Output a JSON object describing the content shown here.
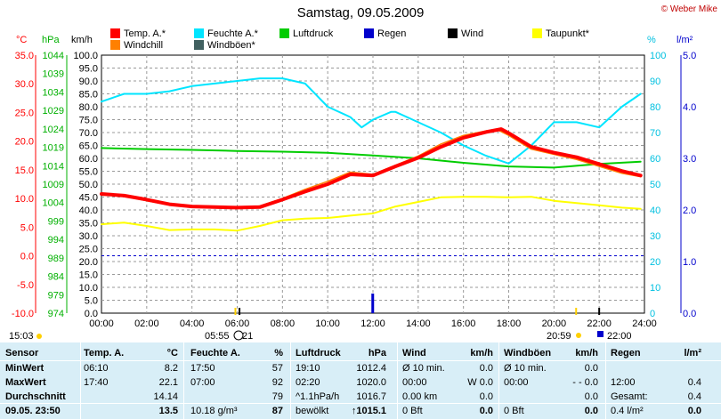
{
  "header": {
    "title": "Samstag, 09.05.2009",
    "brand": "© Weber Mike",
    "axis_headers": {
      "temp": "°C",
      "pressure": "hPa",
      "wind": "km/h",
      "humidity": "%",
      "rain": "l/m²"
    }
  },
  "legend": [
    {
      "label": "Temp. A.*",
      "color": "#ff0000"
    },
    {
      "label": "Feuchte A.*",
      "color": "#00e5ff"
    },
    {
      "label": "Luftdruck",
      "color": "#00cc00"
    },
    {
      "label": "Regen",
      "color": "#0000cc"
    },
    {
      "label": "Wind",
      "color": "#000000"
    },
    {
      "label": "Taupunkt*",
      "color": "#ffff00"
    },
    {
      "label": "Windchill",
      "color": "#ff8000"
    },
    {
      "label": "Windböen*",
      "color": "#406060"
    }
  ],
  "chart_data": {
    "type": "line",
    "title": "Samstag, 09.05.2009",
    "x_ticks": [
      "00:00",
      "02:00",
      "04:00",
      "06:00",
      "08:00",
      "10:00",
      "12:00",
      "14:00",
      "16:00",
      "18:00",
      "20:00",
      "22:00",
      "24:00"
    ],
    "axes": {
      "temp": {
        "label": "°C",
        "ylim": [
          -10,
          35
        ],
        "ticks": [
          "35.0",
          "30.0",
          "25.0",
          "20.0",
          "15.0",
          "10.0",
          "5.0",
          "0.0",
          "-5.0",
          "-10.0"
        ]
      },
      "pressure": {
        "label": "hPa",
        "ylim": [
          974,
          1044
        ],
        "ticks": [
          "1044",
          "1039",
          "1034",
          "1029",
          "1024",
          "1019",
          "1014",
          "1009",
          "1004",
          "999",
          "994",
          "989",
          "984",
          "979",
          "974"
        ]
      },
      "wind": {
        "label": "km/h",
        "ylim": [
          0,
          100
        ],
        "ticks": [
          "100.0",
          "95.0",
          "90.0",
          "85.0",
          "80.0",
          "75.0",
          "70.0",
          "65.0",
          "60.0",
          "55.0",
          "50.0",
          "45.0",
          "40.0",
          "35.0",
          "30.0",
          "25.0",
          "20.0",
          "15.0",
          "10.0",
          "5.0",
          "0.0"
        ]
      },
      "humidity": {
        "label": "%",
        "ylim": [
          0,
          100
        ],
        "ticks": [
          "100",
          "90",
          "80",
          "70",
          "60",
          "50",
          "40",
          "30",
          "20",
          "10",
          "0"
        ]
      },
      "rain": {
        "label": "l/m²",
        "ylim": [
          0,
          5
        ],
        "ticks": [
          "5.0",
          "4.0",
          "3.0",
          "2.0",
          "1.0",
          "0.0"
        ]
      }
    },
    "series": [
      {
        "name": "Temp. A.*",
        "axis": "temp",
        "color": "#ff0000",
        "x": [
          0,
          1,
          2,
          3,
          4,
          5,
          6,
          7,
          8,
          9,
          10,
          11,
          12,
          13,
          14,
          15,
          16,
          17,
          17.67,
          18,
          19,
          20,
          21,
          22,
          23,
          23.83
        ],
        "y": [
          10.8,
          10.5,
          9.8,
          9.0,
          8.6,
          8.5,
          8.4,
          8.5,
          9.8,
          11.2,
          12.5,
          14.2,
          14.0,
          15.6,
          17.1,
          19.0,
          20.6,
          21.6,
          22.1,
          21.4,
          19.0,
          18.0,
          17.2,
          16.0,
          14.8,
          14.0
        ]
      },
      {
        "name": "Windchill",
        "axis": "temp",
        "color": "#ff8000",
        "x": [
          0,
          1,
          2,
          3,
          4,
          5,
          6,
          7,
          8,
          9,
          10,
          11,
          12,
          13,
          14,
          15,
          16,
          17,
          17.5,
          18,
          19,
          20,
          21,
          22,
          23,
          23.83
        ],
        "y": [
          10.6,
          10.4,
          9.6,
          8.9,
          8.5,
          8.4,
          8.3,
          8.7,
          10.0,
          11.6,
          13.0,
          14.6,
          14.2,
          15.8,
          17.4,
          19.5,
          21.0,
          21.8,
          22.0,
          21.0,
          18.6,
          17.7,
          16.8,
          15.6,
          14.4,
          13.8
        ]
      },
      {
        "name": "Feuchte A.*",
        "axis": "humidity",
        "color": "#00e5ff",
        "x": [
          0,
          1,
          2,
          3,
          4,
          5,
          6,
          7,
          8,
          9,
          10,
          11,
          11.5,
          12,
          12.8,
          13,
          14,
          15,
          16,
          17,
          18,
          19,
          20,
          21,
          22,
          23,
          23.83
        ],
        "y": [
          82,
          85,
          85,
          86,
          88,
          89,
          90,
          91,
          91,
          89,
          80,
          76,
          72,
          75,
          78,
          78,
          74,
          70,
          65,
          61,
          58,
          65,
          74,
          74,
          72,
          80,
          85
        ]
      },
      {
        "name": "Luftdruck",
        "axis": "pressure",
        "color": "#00cc00",
        "x": [
          0,
          2,
          4,
          6,
          8,
          10,
          12,
          14,
          16,
          18,
          20,
          22,
          23.83
        ],
        "y": [
          1018.8,
          1018.5,
          1018.3,
          1018.0,
          1017.8,
          1017.5,
          1016.8,
          1016.0,
          1014.8,
          1013.8,
          1013.5,
          1014.5,
          1015.1
        ]
      },
      {
        "name": "Taupunkt*",
        "axis": "temp",
        "color": "#ffff00",
        "x": [
          0,
          1,
          2,
          3,
          4,
          5,
          6,
          7,
          8,
          9,
          10,
          11,
          12,
          13,
          14,
          15,
          16,
          17,
          18,
          19,
          20,
          21,
          22,
          23,
          23.83
        ],
        "y": [
          5.5,
          5.8,
          5.2,
          4.5,
          4.6,
          4.6,
          4.4,
          5.2,
          6.2,
          6.5,
          6.6,
          7.0,
          7.4,
          8.6,
          9.4,
          10.2,
          10.3,
          10.3,
          10.2,
          10.3,
          9.6,
          9.2,
          8.8,
          8.4,
          8.2
        ]
      },
      {
        "name": "Regen",
        "axis": "rain",
        "color": "#0000cc",
        "x": [
          11.99
        ],
        "y": [
          0.38
        ],
        "style": "bar"
      }
    ],
    "markers_row": [
      {
        "time": "05:55",
        "label": "05:55"
      },
      {
        "time": "06:21",
        "label": "21"
      },
      {
        "time": "20:59",
        "label": "20:59"
      },
      {
        "time": "22:00",
        "label": "22:00"
      }
    ],
    "xlabel": "",
    "grid": true
  },
  "bottom_left_time": "15:03",
  "table": {
    "rows": [
      [
        "Sensor",
        "Temp. A.",
        "°C",
        "Feuchte A.",
        "%",
        "Luftdruck",
        "hPa",
        "Wind",
        "km/h",
        "Windböen",
        "km/h",
        "Regen",
        "l/m²"
      ],
      [
        "MinWert",
        "06:10",
        "8.2",
        "17:50",
        "57",
        "19:10",
        "1012.4",
        "Ø 10 min.",
        "0.0",
        "Ø 10 min.",
        "0.0",
        "",
        ""
      ],
      [
        "MaxWert",
        "17:40",
        "22.1",
        "07:00",
        "92",
        "02:20",
        "1020.0",
        "00:00",
        "W 0.0",
        "00:00",
        "- - 0.0",
        "12:00",
        "0.4"
      ],
      [
        "Durchschnitt",
        "",
        "14.14",
        "",
        "79",
        "^1.1hPa/h",
        "1016.7",
        "0.00 km",
        "0.0",
        "",
        "0.0",
        "Gesamt:",
        "0.4"
      ],
      [
        "09.05. 23:50",
        "",
        "13.5",
        "10.18 g/m³",
        "87",
        "bewölkt",
        "↑1015.1",
        "0 Bft",
        "0.0",
        "0 Bft",
        "0.0",
        "0.4 l/m²",
        "0.0"
      ]
    ]
  }
}
